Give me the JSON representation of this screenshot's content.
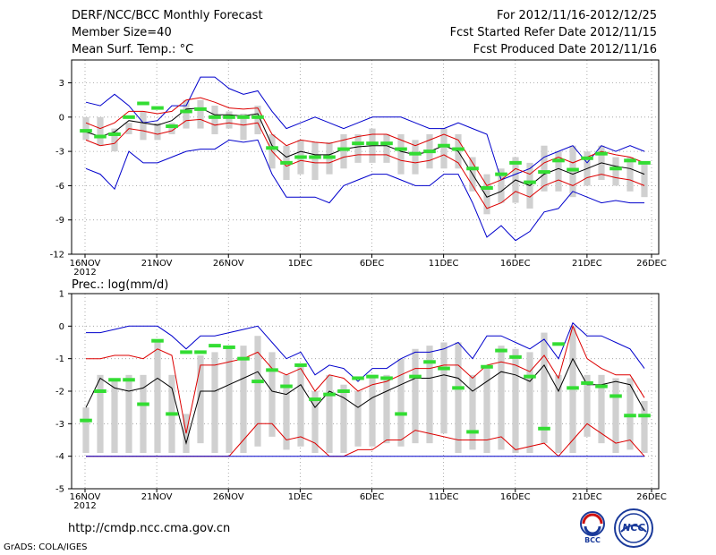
{
  "header": {
    "title": "DERF/NCC/BCC Monthly Forecast",
    "member_size": "Member Size=40",
    "variable_top": "Mean Surf. Temp.: °C",
    "forecast_period": "For 2012/11/16-2012/12/25",
    "started_date": "Fcst Started Refer Date 2012/11/15",
    "produced_date": "Fcst Produced Date 2012/11/16"
  },
  "footer": {
    "url": "http://cmdp.ncc.cma.gov.cn",
    "grads": "GrADS: COLA/IGES",
    "logo_bcc": "BCC",
    "logo_ncc": "NCC"
  },
  "colors": {
    "mean": "#000000",
    "spread": "#dd0000",
    "envelope": "#0000cc",
    "box": "#d0d0d0",
    "median": "#33dd33"
  },
  "chart_data": [
    {
      "type": "line",
      "title": "Mean Surf. Temp.: °C",
      "x_tick_labels": [
        "16NOV",
        "21NOV",
        "26NOV",
        "1DEC",
        "6DEC",
        "11DEC",
        "16DEC",
        "21DEC",
        "26DEC"
      ],
      "year_label": "2012",
      "y_ticks": [
        3,
        0,
        -3,
        -6,
        -9,
        -12
      ],
      "ylim": [
        -12,
        5
      ],
      "day_count": 40,
      "series": [
        {
          "name": "max",
          "values": [
            1.3,
            1.0,
            2.0,
            1.0,
            -0.5,
            -0.3,
            1.0,
            1.0,
            3.5,
            3.5,
            2.5,
            2.0,
            2.3,
            0.5,
            -1.0,
            -0.5,
            0.0,
            -0.5,
            -1.0,
            -0.5,
            0.0,
            0.0,
            0.0,
            -0.5,
            -1.0,
            -1.0,
            -0.5,
            -1.0,
            -1.5,
            -5.5,
            -5.0,
            -4.5,
            -3.5,
            -3.0,
            -2.5,
            -4.0,
            -2.5,
            -3.0,
            -2.5,
            -3.0
          ]
        },
        {
          "name": "upper",
          "values": [
            -0.5,
            -1.0,
            -0.5,
            0.5,
            0.5,
            0.3,
            0.5,
            1.5,
            1.7,
            1.3,
            0.8,
            0.7,
            0.8,
            -1.5,
            -2.5,
            -2.0,
            -2.2,
            -2.3,
            -2.0,
            -1.7,
            -1.5,
            -1.5,
            -2.0,
            -2.5,
            -2.0,
            -1.5,
            -2.0,
            -4.0,
            -6.0,
            -5.5,
            -4.5,
            -5.0,
            -4.0,
            -3.5,
            -4.0,
            -3.5,
            -3.0,
            -3.3,
            -3.5,
            -4.0
          ]
        },
        {
          "name": "mean",
          "values": [
            -1.3,
            -1.7,
            -1.3,
            -0.3,
            -0.5,
            -0.7,
            -0.3,
            0.7,
            0.8,
            0.2,
            0.2,
            0.1,
            0.3,
            -2.5,
            -3.5,
            -3.0,
            -3.3,
            -3.3,
            -2.8,
            -2.6,
            -2.5,
            -2.5,
            -3.0,
            -3.3,
            -3.0,
            -2.5,
            -3.0,
            -5.0,
            -7.0,
            -6.5,
            -5.5,
            -6.0,
            -5.0,
            -4.5,
            -5.0,
            -4.5,
            -4.0,
            -4.3,
            -4.5,
            -5.0
          ]
        },
        {
          "name": "lower",
          "values": [
            -2.0,
            -2.5,
            -2.3,
            -1.0,
            -1.2,
            -1.5,
            -1.2,
            -0.3,
            -0.2,
            -0.7,
            -0.5,
            -0.7,
            -0.5,
            -3.0,
            -4.3,
            -3.8,
            -4.0,
            -4.0,
            -3.5,
            -3.3,
            -3.3,
            -3.3,
            -3.8,
            -4.0,
            -3.8,
            -3.3,
            -4.0,
            -6.0,
            -8.0,
            -7.5,
            -6.5,
            -7.0,
            -6.0,
            -5.5,
            -6.0,
            -5.3,
            -5.0,
            -5.3,
            -5.5,
            -6.0
          ]
        },
        {
          "name": "min",
          "values": [
            -4.5,
            -5.0,
            -6.3,
            -3.0,
            -4.0,
            -4.0,
            -3.5,
            -3.0,
            -2.8,
            -2.8,
            -2.0,
            -2.2,
            -2.0,
            -5.0,
            -7.0,
            -7.0,
            -7.0,
            -7.5,
            -6.0,
            -5.5,
            -5.0,
            -5.0,
            -5.5,
            -6.0,
            -6.0,
            -5.0,
            -5.0,
            -7.5,
            -10.5,
            -9.5,
            -10.8,
            -10.0,
            -8.3,
            -8.0,
            -6.5,
            -7.0,
            -7.5,
            -7.3,
            -7.5,
            -7.5
          ]
        }
      ],
      "box_top": [
        0,
        0,
        -1,
        -0.5,
        0.5,
        -0.5,
        -0.5,
        1.5,
        1.5,
        1.0,
        0.5,
        0.3,
        1.0,
        -1.5,
        -2.5,
        -2.0,
        -2.2,
        -2.2,
        -1.5,
        -1.5,
        -1.0,
        -1.5,
        -1.5,
        -2.0,
        -1.5,
        -1.0,
        -1.5,
        -3.5,
        -5.0,
        -4.5,
        -3.5,
        -4.0,
        -2.5,
        -3.0,
        -2.5,
        -3.0,
        -2.5,
        -3.5,
        -3.5,
        -4.0
      ],
      "box_bottom": [
        -2,
        -2.5,
        -3,
        -1.5,
        -2.0,
        -2.0,
        -1.5,
        -1.0,
        -1.0,
        -1.5,
        -1.0,
        -2.0,
        -1.5,
        -4.5,
        -5.5,
        -5.0,
        -5.5,
        -5.0,
        -4.5,
        -4.0,
        -4.0,
        -4.0,
        -5.0,
        -5.0,
        -4.5,
        -4.5,
        -4.5,
        -6.5,
        -8.5,
        -7.5,
        -7.5,
        -8.0,
        -6.5,
        -6.5,
        -7.0,
        -6.0,
        -5.5,
        -6.0,
        -6.5,
        -7.0
      ],
      "median": [
        -1.2,
        -1.7,
        -1.5,
        0.0,
        1.2,
        0.8,
        -0.8,
        0.5,
        0.7,
        0.0,
        0.0,
        0.0,
        0.0,
        -2.7,
        -4.0,
        -3.5,
        -3.5,
        -3.5,
        -2.8,
        -2.3,
        -2.3,
        -2.3,
        -2.8,
        -3.2,
        -3.0,
        -2.5,
        -2.8,
        -4.5,
        -6.2,
        -5.0,
        -4.0,
        -5.7,
        -4.8,
        -3.8,
        -4.6,
        -3.6,
        -3.2,
        -4.5,
        -3.8,
        -4.0
      ]
    },
    {
      "type": "line",
      "title": "Prec.: log(mm/d)",
      "x_tick_labels": [
        "16NOV",
        "21NOV",
        "26NOV",
        "1DEC",
        "6DEC",
        "11DEC",
        "16DEC",
        "21DEC",
        "26DEC"
      ],
      "year_label": "2012",
      "y_ticks": [
        1,
        0,
        -1,
        -2,
        -3,
        -4,
        -5
      ],
      "ylim": [
        -5,
        1
      ],
      "day_count": 40,
      "series": [
        {
          "name": "max",
          "values": [
            -0.2,
            -0.2,
            -0.1,
            0.0,
            0.0,
            0.0,
            -0.3,
            -0.7,
            -0.3,
            -0.3,
            -0.2,
            -0.1,
            0.0,
            -0.5,
            -1.0,
            -0.8,
            -1.5,
            -1.2,
            -1.3,
            -1.7,
            -1.3,
            -1.3,
            -1.0,
            -0.8,
            -0.8,
            -0.7,
            -0.5,
            -1.0,
            -0.3,
            -0.3,
            -0.5,
            -0.7,
            -0.4,
            -1.0,
            0.1,
            -0.3,
            -0.3,
            -0.5,
            -0.7,
            -1.3
          ]
        },
        {
          "name": "upper",
          "values": [
            -1.0,
            -1.0,
            -0.9,
            -0.9,
            -1.0,
            -0.7,
            -0.9,
            -3.3,
            -1.2,
            -1.2,
            -1.1,
            -1.0,
            -0.8,
            -1.3,
            -1.5,
            -1.3,
            -2.0,
            -1.5,
            -1.6,
            -2.0,
            -1.8,
            -1.7,
            -1.5,
            -1.3,
            -1.3,
            -1.2,
            -1.2,
            -1.6,
            -1.2,
            -1.1,
            -1.2,
            -1.4,
            -0.9,
            -1.6,
            0.0,
            -1.0,
            -1.3,
            -1.5,
            -1.5,
            -2.2
          ]
        },
        {
          "name": "mean",
          "values": [
            -2.5,
            -1.6,
            -1.9,
            -2.0,
            -1.9,
            -1.6,
            -1.9,
            -3.6,
            -2.0,
            -2.0,
            -1.8,
            -1.6,
            -1.4,
            -2.0,
            -2.1,
            -1.8,
            -2.5,
            -2.0,
            -2.2,
            -2.5,
            -2.2,
            -2.0,
            -1.8,
            -1.6,
            -1.6,
            -1.5,
            -1.6,
            -2.0,
            -1.7,
            -1.4,
            -1.5,
            -1.7,
            -1.2,
            -2.0,
            -1.0,
            -1.8,
            -1.8,
            -1.7,
            -1.8,
            -2.6
          ]
        },
        {
          "name": "lower",
          "values": [
            -4.0,
            -4.0,
            -4.0,
            -4.0,
            -4.0,
            -4.0,
            -4.0,
            -4.0,
            -4.0,
            -4.0,
            -4.0,
            -3.5,
            -3.0,
            -3.0,
            -3.5,
            -3.4,
            -3.6,
            -4.0,
            -4.0,
            -3.8,
            -3.8,
            -3.5,
            -3.5,
            -3.2,
            -3.3,
            -3.4,
            -3.5,
            -3.5,
            -3.5,
            -3.4,
            -3.8,
            -3.7,
            -3.6,
            -4.0,
            -3.5,
            -3.0,
            -3.3,
            -3.6,
            -3.5,
            -4.0
          ]
        },
        {
          "name": "min",
          "values": [
            -4.0,
            -4.0,
            -4.0,
            -4.0,
            -4.0,
            -4.0,
            -4.0,
            -4.0,
            -4.0,
            -4.0,
            -4.0,
            -4.0,
            -4.0,
            -4.0,
            -4.0,
            -4.0,
            -4.0,
            -4.0,
            -4.0,
            -4.0,
            -4.0,
            -4.0,
            -4.0,
            -4.0,
            -4.0,
            -4.0,
            -4.0,
            -4.0,
            -4.0,
            -4.0,
            -4.0,
            -4.0,
            -4.0,
            -4.0,
            -4.0,
            -4.0,
            -4.0,
            -4.0,
            -4.0,
            -4.0
          ]
        }
      ],
      "box_top": [
        -2.5,
        -1.5,
        -1.6,
        -1.5,
        -1.5,
        -0.5,
        -1.5,
        -2.7,
        -0.9,
        -0.8,
        -0.7,
        -0.6,
        -0.3,
        -0.8,
        -1.5,
        -1.2,
        -2.0,
        -1.5,
        -1.8,
        -2.0,
        -1.5,
        -1.5,
        -1.0,
        -0.7,
        -0.6,
        -0.5,
        -0.5,
        -1.5,
        -1.2,
        -0.6,
        -0.7,
        -0.8,
        -0.2,
        -1.5,
        0.0,
        -1.5,
        -1.5,
        -1.6,
        -1.6,
        -2.3
      ],
      "box_bottom": [
        -3.9,
        -3.9,
        -3.9,
        -3.9,
        -3.9,
        -3.9,
        -3.9,
        -3.9,
        -3.6,
        -3.9,
        -3.9,
        -3.9,
        -3.7,
        -3.4,
        -3.8,
        -3.7,
        -3.9,
        -3.9,
        -3.9,
        -3.7,
        -3.7,
        -3.6,
        -3.7,
        -3.6,
        -3.6,
        -3.3,
        -3.9,
        -3.8,
        -3.9,
        -3.8,
        -3.9,
        -3.9,
        -3.6,
        -3.9,
        -3.9,
        -3.4,
        -3.6,
        -3.9,
        -3.8,
        -3.9
      ],
      "median": [
        -2.9,
        -2.0,
        -1.65,
        -1.65,
        -2.4,
        -0.45,
        -2.7,
        -0.8,
        -0.8,
        -0.6,
        -0.65,
        -1.0,
        -1.7,
        -1.35,
        -1.85,
        -1.2,
        -2.25,
        -2.1,
        -2.0,
        -1.6,
        -1.55,
        -1.6,
        -2.7,
        -1.55,
        -1.1,
        -1.3,
        -1.9,
        -3.25,
        -1.25,
        -0.75,
        -0.95,
        -1.55,
        -3.15,
        -0.55,
        -1.9,
        -1.75,
        -1.85,
        -2.15,
        -2.75,
        -2.75
      ]
    }
  ]
}
